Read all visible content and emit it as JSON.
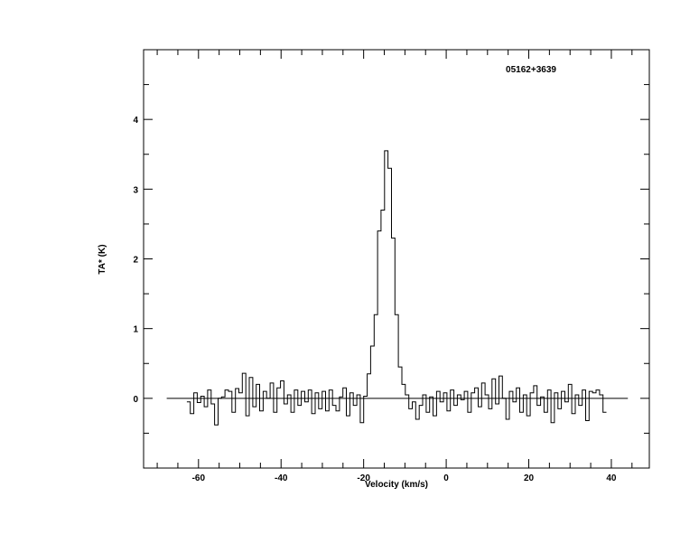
{
  "chart_data": {
    "type": "line",
    "style": "histogram",
    "title": "05162+3639",
    "xlabel": "Velocity (km/s)",
    "ylabel": "TA* (K)",
    "xlim": [
      -73.3,
      49.2
    ],
    "ylim": [
      -1,
      5
    ],
    "xticks": [
      -60,
      -40,
      -20,
      0,
      20,
      40
    ],
    "xtick_labels": [
      "-60",
      "-40",
      "-20",
      "0",
      "20",
      "40"
    ],
    "yticks": [
      0,
      1,
      2,
      3,
      4
    ],
    "ytick_labels": [
      "0",
      "1",
      "2",
      "3",
      "4"
    ],
    "baseline": {
      "y": 0,
      "x_range": [
        -67.7,
        44
      ]
    },
    "grid": false,
    "line_color": "#000000",
    "channel_start_kms": -62.4,
    "channel_width_kms": 0.84,
    "values": [
      -0.05,
      -0.22,
      0.08,
      -0.06,
      0.03,
      -0.12,
      0.12,
      -0.08,
      -0.38,
      0.0,
      0.02,
      0.12,
      0.1,
      -0.2,
      0.14,
      0.08,
      0.36,
      -0.25,
      0.3,
      -0.12,
      0.2,
      -0.18,
      0.1,
      0.0,
      0.22,
      -0.2,
      0.15,
      0.25,
      -0.08,
      0.05,
      -0.2,
      0.12,
      -0.1,
      0.1,
      -0.05,
      0.12,
      -0.22,
      0.08,
      -0.15,
      0.1,
      -0.18,
      0.12,
      -0.1,
      -0.18,
      0.02,
      0.15,
      -0.25,
      0.08,
      -0.1,
      0.05,
      -0.35,
      0.03,
      0.35,
      0.75,
      1.2,
      2.4,
      2.7,
      3.55,
      3.3,
      2.3,
      1.2,
      0.45,
      0.2,
      0.05,
      -0.15,
      -0.05,
      -0.3,
      -0.1,
      0.05,
      -0.2,
      0.02,
      -0.25,
      0.1,
      -0.05,
      0.08,
      -0.18,
      0.12,
      -0.1,
      0.05,
      -0.02,
      0.1,
      -0.2,
      0.08,
      0.15,
      -0.12,
      0.22,
      0.05,
      -0.15,
      0.28,
      -0.08,
      0.32,
      0.0,
      -0.3,
      0.1,
      -0.05,
      0.15,
      -0.2,
      0.05,
      -0.25,
      0.08,
      0.18,
      -0.1,
      0.02,
      -0.2,
      0.12,
      -0.35,
      0.08,
      -0.15,
      0.1,
      -0.05,
      0.2,
      -0.22,
      0.05,
      -0.1,
      0.12,
      -0.32,
      0.1,
      0.08,
      0.12,
      0.05,
      -0.2
    ]
  }
}
